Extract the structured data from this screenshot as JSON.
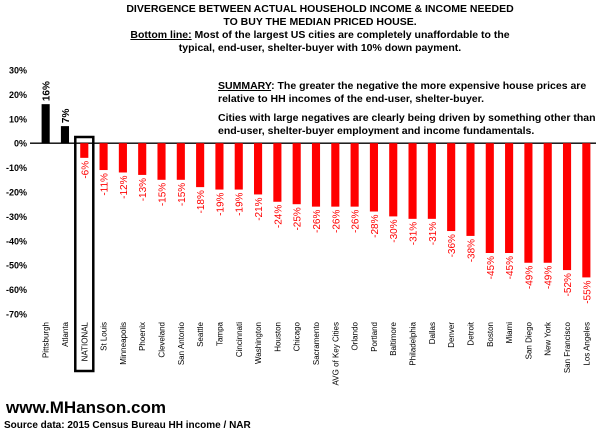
{
  "title_lines": [
    "DIVERGENCE BETWEEN ACTUAL HOUSEHOLD INCOME & INCOME NEEDED",
    "TO BUY THE MEDIAN PRICED HOUSE.",
    "Bottom line:",
    " Most of the largest US cities are completely unaffordable to the",
    "typical, end-user, shelter-buyer with 10% down payment."
  ],
  "summary": {
    "heading": "SUMMARY",
    "text1": ": The greater the negative the more expensive house prices are relative to HH incomes of the end-user, shelter-buyer.",
    "text2": "Cities with large negatives are clearly being driven by something other than end-user, shelter-buyer employment and income fundamentals."
  },
  "footer": {
    "site": "www.MHanson.com",
    "source": "Source data: 2015 Census Bureau HH income / NAR"
  },
  "colors": {
    "positive": "#000000",
    "negative": "#ff0000"
  },
  "chart_data": {
    "type": "bar",
    "categories": [
      "Pittsburgh",
      "Atlanta",
      "NATIONAL",
      "St Louis",
      "Minneapolis",
      "Phoenix",
      "Cleveland",
      "San Antonio",
      "Seattle",
      "Tampa",
      "Cincinnati",
      "Washington",
      "Houston",
      "Chicago",
      "Sacramento",
      "AVG of Key Cities",
      "Orlando",
      "Portland",
      "Baltimore",
      "Philadelphia",
      "Dallas",
      "Denver",
      "Detroit",
      "Boston",
      "Miami",
      "San Diego",
      "New York",
      "San Francisco",
      "Los Angeles"
    ],
    "values": [
      16,
      7,
      -6,
      -11,
      -12,
      -13,
      -15,
      -15,
      -18,
      -19,
      -19,
      -21,
      -24,
      -25,
      -26,
      -26,
      -26,
      -28,
      -30,
      -31,
      -31,
      -36,
      -38,
      -45,
      -45,
      -49,
      -49,
      -52,
      -55
    ],
    "data_labels": [
      "16%",
      "7%",
      "-6%",
      "-11%",
      "-12%",
      "-13%",
      "-15%",
      "-15%",
      "-18%",
      "-19%",
      "-19%",
      "-21%",
      "-24%",
      "-25%",
      "-26%",
      "-26%",
      "-26%",
      "-28%",
      "-30%",
      "-31%",
      "-31%",
      "-36%",
      "-38%",
      "-45%",
      "-45%",
      "-49%",
      "-49%",
      "-52%",
      "-55%"
    ],
    "ylim": [
      -70,
      30
    ],
    "yticks": [
      "30%",
      "20%",
      "10%",
      "0%",
      "-10%",
      "-20%",
      "-30%",
      "-40%",
      "-50%",
      "-60%",
      "-70%"
    ],
    "ytick_values": [
      30,
      20,
      10,
      0,
      -10,
      -20,
      -30,
      -40,
      -50,
      -60,
      -70
    ],
    "highlight": "NATIONAL",
    "grid": false,
    "legend": "none"
  }
}
